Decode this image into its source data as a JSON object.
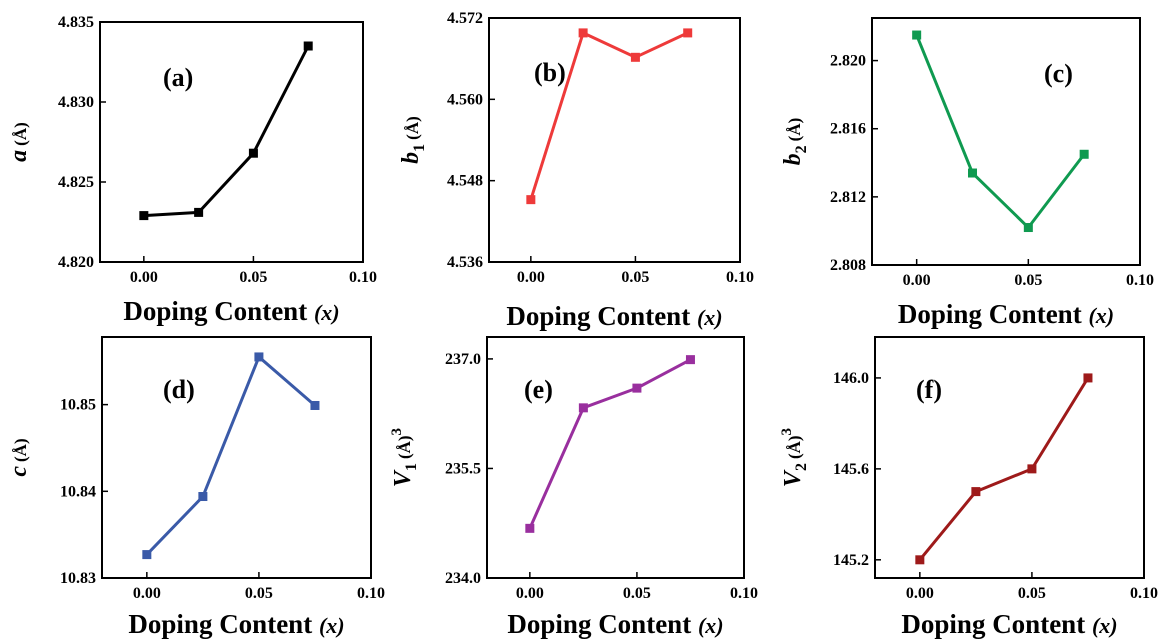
{
  "chart_data": [
    {
      "type": "line",
      "panel_label": "(a)",
      "ylabel_var": "a",
      "ylabel_sub": "",
      "ylabel_unit": "(Å)",
      "xlabel_prefix": "Doping Content ",
      "xlabel_var": "(x)",
      "xlim": [
        -0.02,
        0.1
      ],
      "ylim": [
        4.82,
        4.835
      ],
      "xticks": [
        "0.00",
        "0.05",
        "0.10"
      ],
      "yticks": [
        "4.820",
        "4.825",
        "4.830",
        "4.835"
      ],
      "color": "#000000",
      "x": [
        0,
        0.025,
        0.05,
        0.075
      ],
      "y": [
        4.8229,
        4.8231,
        4.8268,
        4.8335
      ]
    },
    {
      "type": "line",
      "panel_label": "(b)",
      "ylabel_var": "b",
      "ylabel_sub": "1",
      "ylabel_unit": "(Å)",
      "xlabel_prefix": "Doping Content ",
      "xlabel_var": "(x)",
      "xlim": [
        -0.02,
        0.1
      ],
      "ylim": [
        4.536,
        4.572
      ],
      "xticks": [
        "0.00",
        "0.05",
        "0.10"
      ],
      "yticks": [
        "4.536",
        "4.548",
        "4.560",
        "4.572"
      ],
      "color": "#ee3a3a",
      "x": [
        0,
        0.025,
        0.05,
        0.075
      ],
      "y": [
        4.5452,
        4.5698,
        4.5662,
        4.5698
      ]
    },
    {
      "type": "line",
      "panel_label": "(c)",
      "ylabel_var": "b",
      "ylabel_sub": "2",
      "ylabel_unit": "(Å)",
      "xlabel_prefix": "Doping Content ",
      "xlabel_var": "(x)",
      "xlim": [
        -0.02,
        0.1
      ],
      "ylim": [
        2.808,
        2.8225
      ],
      "xticks": [
        "0.00",
        "0.05",
        "0.10"
      ],
      "yticks": [
        "2.808",
        "2.812",
        "2.816",
        "2.820"
      ],
      "color": "#0f9a50",
      "x": [
        0,
        0.025,
        0.05,
        0.075
      ],
      "y": [
        2.8215,
        2.8134,
        2.8102,
        2.8145
      ]
    },
    {
      "type": "line",
      "panel_label": "(d)",
      "ylabel_var": "c",
      "ylabel_sub": "",
      "ylabel_unit": "(Å)",
      "xlabel_prefix": "Doping Content ",
      "xlabel_var": "(x)",
      "xlim": [
        -0.02,
        0.1
      ],
      "ylim": [
        10.83,
        10.8578
      ],
      "xticks": [
        "0.00",
        "0.05",
        "0.10"
      ],
      "yticks": [
        "10.83",
        "10.84",
        "10.85"
      ],
      "color": "#3a5aa8",
      "x": [
        0,
        0.025,
        0.05,
        0.075
      ],
      "y": [
        10.8327,
        10.8394,
        10.8555,
        10.8499
      ]
    },
    {
      "type": "line",
      "panel_label": "(e)",
      "ylabel_var": "V",
      "ylabel_sub": "1",
      "ylabel_unit": "(Å)",
      "ylabel_sup": "3",
      "xlabel_prefix": "Doping Content ",
      "xlabel_var": "(x)",
      "xlim": [
        -0.02,
        0.1
      ],
      "ylim": [
        234.0,
        237.3
      ],
      "xticks": [
        "0.00",
        "0.05",
        "0.10"
      ],
      "yticks": [
        "234.0",
        "235.5",
        "237.0"
      ],
      "color": "#992f9e",
      "x": [
        0,
        0.025,
        0.05,
        0.075
      ],
      "y": [
        234.68,
        236.33,
        236.6,
        236.99
      ]
    },
    {
      "type": "line",
      "panel_label": "(f)",
      "ylabel_var": "V",
      "ylabel_sub": "2",
      "ylabel_unit": "(Å)",
      "ylabel_sup": "3",
      "xlabel_prefix": "Doping Content ",
      "xlabel_var": "(x)",
      "xlim": [
        -0.02,
        0.1
      ],
      "ylim": [
        145.12,
        146.18
      ],
      "xticks": [
        "0.00",
        "0.05",
        "0.10"
      ],
      "yticks": [
        "145.2",
        "145.6",
        "146.0"
      ],
      "color": "#9e1a1a",
      "x": [
        0,
        0.025,
        0.05,
        0.075
      ],
      "y": [
        145.2,
        145.5,
        145.6,
        146.0
      ]
    }
  ]
}
